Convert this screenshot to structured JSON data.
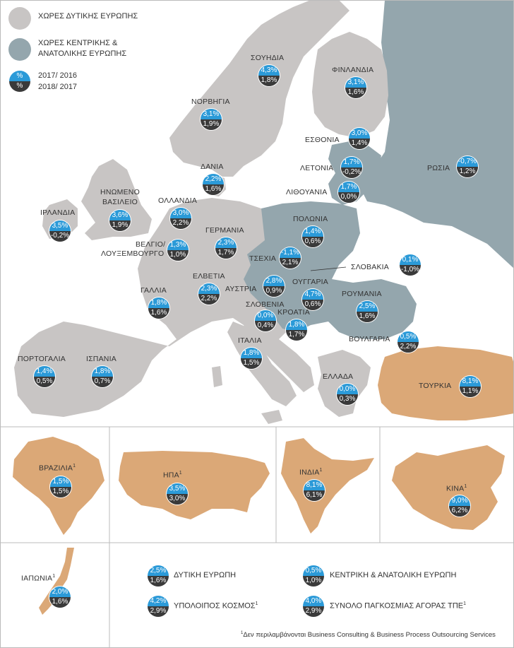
{
  "colors": {
    "western": "#c8c5c4",
    "central_eastern": "#94a6ad",
    "other": "#dba877",
    "badge_top": "#2b9ad8",
    "badge_bottom": "#3a3a3a"
  },
  "legend": {
    "western": "ΧΩΡΕΣ ΔΥΤΙΚΗΣ ΕΥΡΩΠΗΣ",
    "central_line1": "ΧΩΡΕΣ ΚΕΝΤΡΙΚΗΣ &",
    "central_line2": "ΑΝΑΤΟΛΙΚΗΣ ΕΥΡΩΠΗΣ",
    "badge_top": "%",
    "badge_bottom": "%",
    "year_top": "2017/ 2016",
    "year_bottom": "2018/ 2017"
  },
  "countries": {
    "sweden": {
      "name": "ΣΟΥΗΔΙΑ",
      "v1": "4,3%",
      "v2": "1,8%"
    },
    "finland": {
      "name": "ΦΙΝΛΑΝΔΙΑ",
      "v1": "3,1%",
      "v2": "1,6%"
    },
    "norway": {
      "name": "ΝΟΡΒΗΓΙΑ",
      "v1": "3,1%",
      "v2": "1,9%"
    },
    "estonia": {
      "name": "ΕΣΘΟΝΙΑ",
      "v1": "3,0%",
      "v2": "1,4%"
    },
    "denmark": {
      "name": "ΔΑΝΙΑ",
      "v1": "2,2%",
      "v2": "1,6%"
    },
    "latvia": {
      "name": "ΛΕΤΟΝΙΑ",
      "v1": "1,7%",
      "v2": "-0,2%"
    },
    "russia": {
      "name": "ΡΩΣΙΑ",
      "v1": "-0,7%",
      "v2": "1,2%"
    },
    "lithuania": {
      "name": "ΛΙΘΟΥΑΝΙΑ",
      "v1": "1,7%",
      "v2": "0,0%"
    },
    "uk": {
      "name1": "ΗΝΩΜΕΝΟ",
      "name2": "ΒΑΣΙΛΕΙΟ",
      "v1": "3,6%",
      "v2": "1,9%"
    },
    "netherlands": {
      "name": "ΟΛΛΑΝΔΙΑ",
      "v1": "3,0%",
      "v2": "2,2%"
    },
    "ireland": {
      "name": "ΙΡΛΑΝΔΙΑ",
      "v1": "3,5%",
      "v2": "-0,2%"
    },
    "germany": {
      "name": "ΓΕΡΜΑΝΙΑ",
      "v1": "2,3%",
      "v2": "1,7%"
    },
    "poland": {
      "name": "ΠΟΛΩΝΙΑ",
      "v1": "1,4%",
      "v2": "0,6%"
    },
    "belgium": {
      "name1": "ΒΕΛΓΙΟ/",
      "name2": "ΛΟΥΞΕΜΒΟΥΡΓΟ",
      "v1": "1,3%",
      "v2": "1,0%"
    },
    "czech": {
      "name": "ΤΣΕΧΙΑ",
      "v1": "-1,1%",
      "v2": "2,1%"
    },
    "slovakia": {
      "name": "ΣΛΟΒΑΚΙΑ",
      "v1": "0,1%",
      "v2": "-1,0%"
    },
    "switzerland": {
      "name": "ΕΛΒΕΤΙΑ",
      "v1": "2,3%",
      "v2": "2,2%"
    },
    "austria": {
      "name": "ΑΥΣΤΡΙΑ",
      "v1": "2,8%",
      "v2": "0,9%"
    },
    "hungary": {
      "name": "ΟΥΓΓΑΡΙΑ",
      "v1": "4,7%",
      "v2": "0,6%"
    },
    "france": {
      "name": "ΓΑΛΛΙΑ",
      "v1": "1,8%",
      "v2": "1,6%"
    },
    "slovenia": {
      "name": "ΣΛΟΒΕΝΙΑ",
      "v1": "0,0%",
      "v2": "0,4%"
    },
    "croatia": {
      "name": "ΚΡΟΑΤΙΑ",
      "v1": "1,8%",
      "v2": "1,7%"
    },
    "romania": {
      "name": "ΡΟΥΜΑΝΙΑ",
      "v1": "2,5%",
      "v2": "1,6%"
    },
    "bulgaria": {
      "name": "ΒΟΥΛΓΑΡΙΑ",
      "v1": "0,5%",
      "v2": "2,2%"
    },
    "italy": {
      "name": "ΙΤΑΛΙΑ",
      "v1": "1,8%",
      "v2": "1,5%"
    },
    "portugal": {
      "name": "ΠΟΡΤΟΓΑΛΙΑ",
      "v1": "1,4%",
      "v2": "0,5%"
    },
    "spain": {
      "name": "ΙΣΠΑΝΙΑ",
      "v1": "1,8%",
      "v2": "0,7%"
    },
    "greece": {
      "name": "ΕΛΛΑΔΑ",
      "v1": "0,0%",
      "v2": "0,3%"
    },
    "turkey": {
      "name": "ΤΟΥΡΚΙΑ",
      "v1": "8,1%",
      "v2": "1,1%"
    }
  },
  "world": {
    "brazil": {
      "name": "ΒΡΑΖΙΛΙΑ",
      "sup": "1",
      "v1": "1,5%",
      "v2": "1,5%"
    },
    "usa": {
      "name": "ΗΠΑ",
      "sup": "1",
      "v1": "3,5%",
      "v2": "3,0%"
    },
    "india": {
      "name": "ΙΝΔΙΑ",
      "sup": "1",
      "v1": "8,1%",
      "v2": "6,1%"
    },
    "china": {
      "name": "ΚΙΝΑ",
      "sup": "1",
      "v1": "9,0%",
      "v2": "6,2%"
    },
    "japan": {
      "name": "ΙΑΠΩΝΙΑ",
      "sup": "1",
      "v1": "2,0%",
      "v2": "1,6%"
    }
  },
  "summary": {
    "western": {
      "name": "ΔΥΤΙΚΗ ΕΥΡΩΠΗ",
      "v1": "2,5%",
      "v2": "1,6%"
    },
    "central": {
      "name": "ΚΕΝΤΡΙΚΗ & ΑΝΑΤΟΛΙΚΗ ΕΥΡΩΠΗ",
      "v1": "0,5%",
      "v2": "1,0%"
    },
    "rest": {
      "name": "ΥΠΟΛΟΙΠΟΣ ΚΟΣΜΟΣ",
      "sup": "1",
      "v1": "4,2%",
      "v2": "2,9%"
    },
    "total": {
      "name": "ΣΥΝΟΛΟ ΠΑΓΚΟΣΜΙΑΣ ΑΓΟΡΑΣ ΤΠΕ",
      "sup": "1",
      "v1": "4,0%",
      "v2": "2,9%"
    }
  },
  "footnote": {
    "sup": "1",
    "text": "Δεν περιλαμβάνονται Business Consulting & Business Process Outsourcing Services"
  }
}
